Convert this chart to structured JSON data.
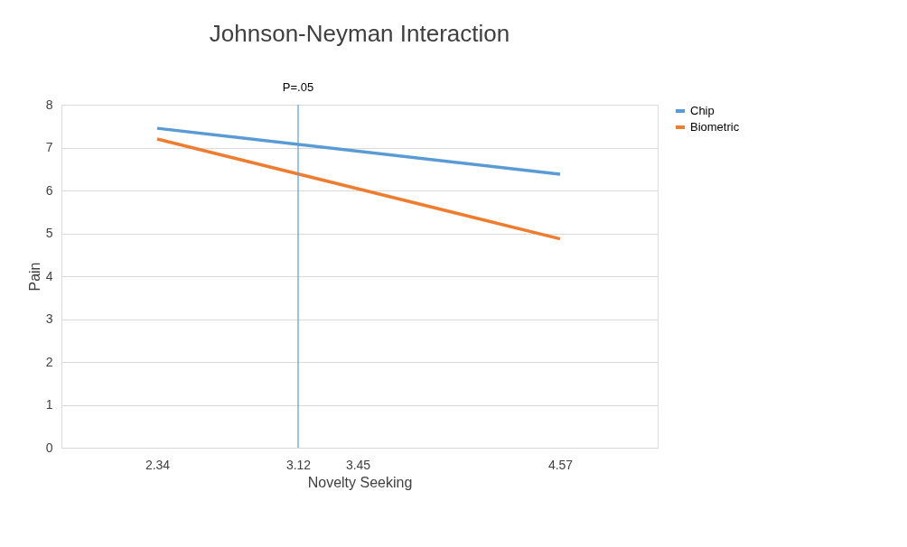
{
  "chart_data": {
    "type": "line",
    "title": "Johnson-Neyman Interaction",
    "xlabel": "Novelty Seeking",
    "ylabel": "Pain",
    "x": [
      2.34,
      4.57
    ],
    "series": [
      {
        "name": "Chip",
        "color": "#5b9bd5",
        "values": [
          7.45,
          6.38
        ]
      },
      {
        "name": "Biometric",
        "color": "#ed7d31",
        "values": [
          7.2,
          4.87
        ]
      }
    ],
    "xlim": [
      1.81,
      5.11
    ],
    "xticks": [
      2.34,
      3.12,
      3.45,
      4.57
    ],
    "ylim": [
      0,
      8
    ],
    "yticks": [
      0,
      1,
      2,
      3,
      4,
      5,
      6,
      7,
      8
    ],
    "ref_lines": [
      {
        "axis": "x",
        "value": 3.12,
        "label": "P=.05",
        "color": "#5b9bd5"
      }
    ],
    "grid": "y",
    "legend": "right",
    "marker": "none",
    "line_style": "solid"
  }
}
